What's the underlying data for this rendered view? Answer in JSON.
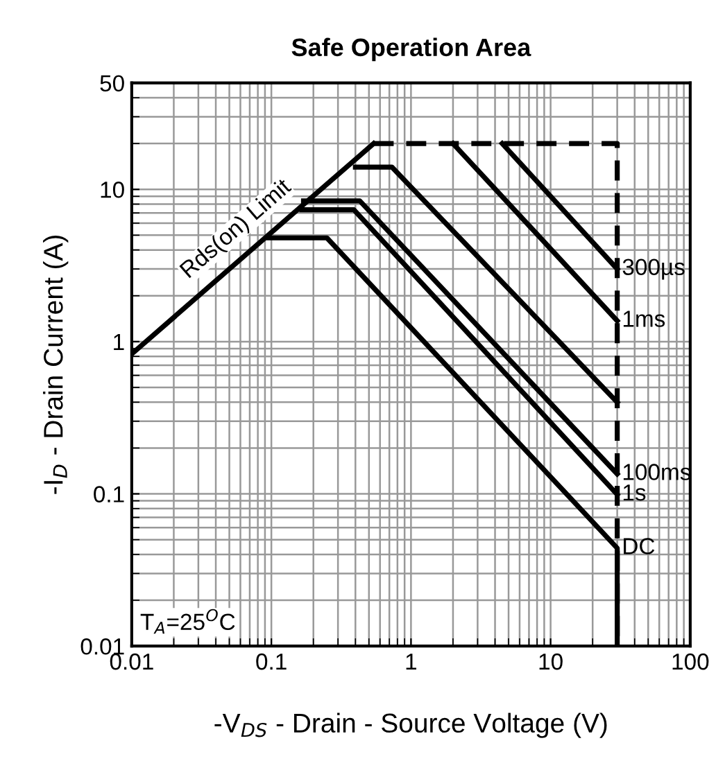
{
  "chart_data": {
    "type": "line",
    "title": "Safe Operation Area",
    "xlabel": "-V$_{DS}$ - Drain - Source Voltage (V)",
    "ylabel": "-I$_{D}$ - Drain Current (A)",
    "log": "xy",
    "xlim": [
      0.01,
      100
    ],
    "ylim": [
      0.01,
      50
    ],
    "xticks": [
      0.01,
      0.1,
      1,
      10,
      100
    ],
    "yticks": [
      0.01,
      0.1,
      1,
      10,
      50
    ],
    "grid": true,
    "legend": false,
    "marker": "none",
    "line_style": "solid",
    "series": [
      {
        "x": [
          0.01,
          0.54
        ],
        "values": [
          0.83,
          20
        ],
        "color": "#000000"
      },
      {
        "x": [
          0.54,
          30,
          30
        ],
        "values": [
          20,
          20,
          0.01
        ],
        "color": "#000000",
        "line_style": "dashed"
      },
      {
        "name": "300µs",
        "x": [
          4.5,
          30
        ],
        "values": [
          20,
          3.0
        ],
        "color": "#000000"
      },
      {
        "name": "1ms",
        "x": [
          2.0,
          30
        ],
        "values": [
          20,
          1.37
        ],
        "color": "#000000"
      },
      {
        "x": [
          0.4,
          0.73,
          30
        ],
        "values": [
          14,
          14,
          0.4
        ],
        "color": "#000000"
      },
      {
        "name": "100ms",
        "x": [
          0.17,
          0.43,
          30
        ],
        "values": [
          8.4,
          8.4,
          0.135
        ],
        "color": "#000000"
      },
      {
        "name": "1s",
        "x": [
          0.165,
          0.39,
          30
        ],
        "values": [
          7.35,
          7.35,
          0.099
        ],
        "color": "#000000"
      },
      {
        "name": "DC",
        "x": [
          0.096,
          0.25,
          30,
          30
        ],
        "values": [
          4.8,
          4.8,
          0.044,
          0.01
        ],
        "color": "#000000"
      }
    ],
    "annotations": [
      {
        "text": "Rds(on) Limit",
        "x": 0.07,
        "y": 4.3
      },
      "T$_{A}$=25$^{O}$C"
    ]
  }
}
